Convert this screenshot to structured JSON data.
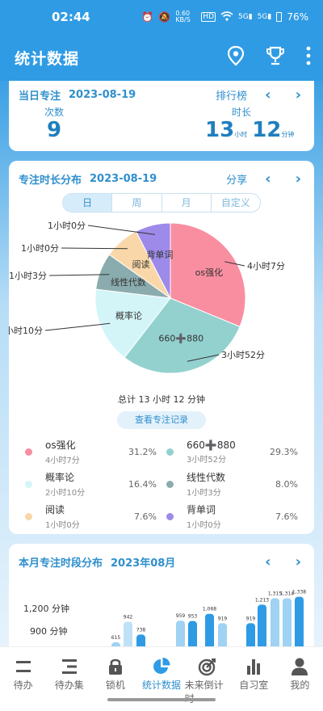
{
  "status": {
    "time": "02:44",
    "speed": "0.60 KB/S",
    "hd": "HD",
    "net1": "5G",
    "net2": "5G",
    "battery": "76%"
  },
  "app": {
    "title": "统计数据"
  },
  "today": {
    "label": "当日专注",
    "date": "2023-08-19",
    "rank": "排行榜",
    "count_label": "次数",
    "count_value": "9",
    "duration_label": "时长",
    "hours": "13",
    "hours_unit": "小时",
    "minutes": "12",
    "minutes_unit": "分钟"
  },
  "dist": {
    "label": "专注时长分布",
    "date": "2023-08-19",
    "share": "分享",
    "tabs": [
      "日",
      "周",
      "月",
      "自定义"
    ],
    "total": "总计 13 小时 12 分钟",
    "view_records": "查看专注记录"
  },
  "chart_data": {
    "type": "pie",
    "slices": [
      {
        "name": "os强化",
        "value": 247,
        "pct": "31.2%",
        "time": "4小时7分",
        "color": "#f98ea1"
      },
      {
        "name": "660➕880",
        "value": 232,
        "pct": "29.3%",
        "time": "3小时52分",
        "color": "#93d1cf"
      },
      {
        "name": "概率论",
        "value": 130,
        "pct": "16.4%",
        "time": "2小时10分",
        "color": "#d4f5f7"
      },
      {
        "name": "线性代数",
        "value": 63,
        "pct": "8.0%",
        "time": "1小时3分",
        "color": "#8bacae"
      },
      {
        "name": "阅读",
        "value": 60,
        "pct": "7.6%",
        "time": "1小时0分",
        "color": "#f9d7a8"
      },
      {
        "name": "背单词",
        "value": 60,
        "pct": "7.6%",
        "time": "1小时0分",
        "color": "#9d8ae9"
      }
    ]
  },
  "monthly": {
    "label": "本月专注时段分布",
    "month": "2023年08月",
    "y_labels": [
      "1,200 分钟",
      "900 分钟"
    ],
    "bars": [
      {
        "label": "615",
        "value": 615,
        "color": "#9fd2f3"
      },
      {
        "label": "942",
        "value": 942,
        "color": "#bfe1f7"
      },
      {
        "label": "738",
        "value": 738,
        "color": "#2f9be4"
      },
      {
        "label": "959",
        "value": 959,
        "color": "#9fd2f3"
      },
      {
        "label": "953",
        "value": 953,
        "color": "#2f9be4"
      },
      {
        "label": "1,068",
        "value": 1068,
        "color": "#2f9be4"
      },
      {
        "label": "919",
        "value": 919,
        "color": "#9fd2f3"
      },
      {
        "label": "919",
        "value": 919,
        "color": "#2f9be4"
      },
      {
        "label": "1,213",
        "value": 1213,
        "color": "#2f9be4"
      },
      {
        "label": "1,315",
        "value": 1315,
        "color": "#9fd2f3"
      },
      {
        "label": "1,314",
        "value": 1314,
        "color": "#9fd2f3"
      },
      {
        "label": "1,338",
        "value": 1338,
        "color": "#2f9be4"
      }
    ]
  },
  "nav": [
    {
      "label": "待办",
      "icon": "list-icon"
    },
    {
      "label": "待办集",
      "icon": "list-collection-icon"
    },
    {
      "label": "锁机",
      "icon": "lock-icon"
    },
    {
      "label": "统计数据",
      "icon": "pie-chart-icon",
      "active": true
    },
    {
      "label": "未来倒计时",
      "icon": "target-icon"
    },
    {
      "label": "自习室",
      "icon": "bar-chart-icon"
    },
    {
      "label": "我的",
      "icon": "person-icon"
    }
  ]
}
